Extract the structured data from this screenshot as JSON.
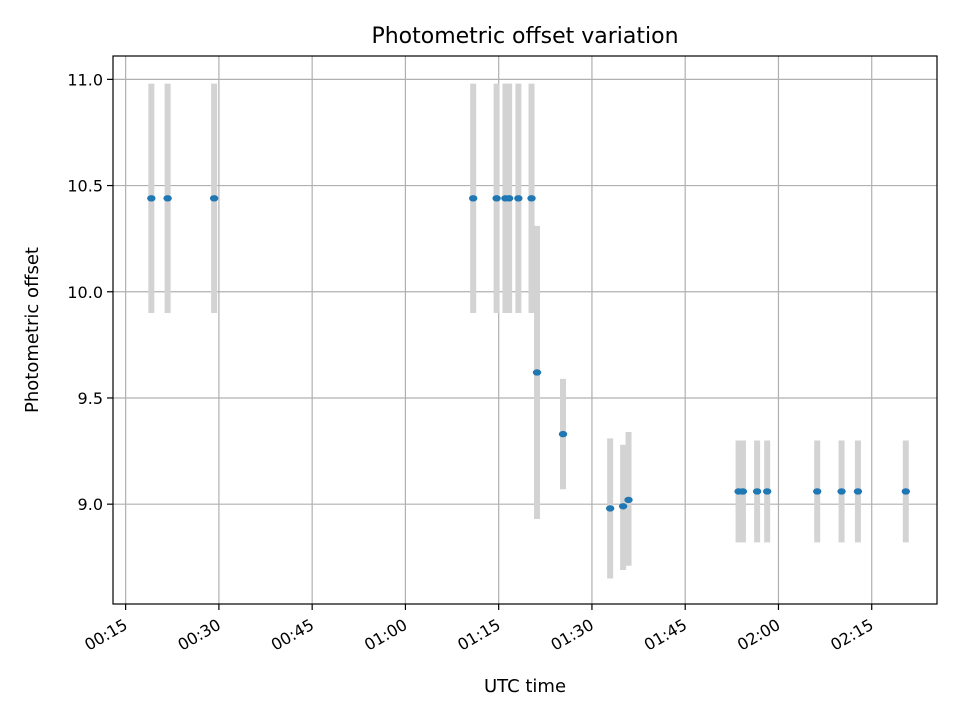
{
  "chart_data": {
    "type": "scatter",
    "title": "Photometric offset variation",
    "xlabel": "UTC time",
    "ylabel": "Photometric offset",
    "x_ticks": [
      "00:15",
      "00:30",
      "00:45",
      "01:00",
      "01:15",
      "01:30",
      "01:45",
      "02:00",
      "02:15"
    ],
    "y_ticks": [
      "9.0",
      "9.5",
      "10.0",
      "10.5",
      "11.0"
    ],
    "xlim": [
      "00:12:58",
      "02:25:30"
    ],
    "ylim": [
      8.53,
      11.11
    ],
    "grid": true,
    "point_color": "#1f77b4",
    "errorbar_color": "#d3d3d3",
    "points": [
      {
        "x": "00:19:08",
        "y": 10.44,
        "ylow": 9.9,
        "yhigh": 10.98
      },
      {
        "x": "00:21:45",
        "y": 10.44,
        "ylow": 9.9,
        "yhigh": 10.98
      },
      {
        "x": "00:29:14",
        "y": 10.44,
        "ylow": 9.9,
        "yhigh": 10.98
      },
      {
        "x": "01:10:54",
        "y": 10.44,
        "ylow": 9.9,
        "yhigh": 10.98
      },
      {
        "x": "01:14:40",
        "y": 10.44,
        "ylow": 9.9,
        "yhigh": 10.98
      },
      {
        "x": "01:16:05",
        "y": 10.44,
        "ylow": 9.9,
        "yhigh": 10.98
      },
      {
        "x": "01:16:41",
        "y": 10.44,
        "ylow": 9.9,
        "yhigh": 10.98
      },
      {
        "x": "01:18:10",
        "y": 10.44,
        "ylow": 9.9,
        "yhigh": 10.98
      },
      {
        "x": "01:20:17",
        "y": 10.44,
        "ylow": 9.9,
        "yhigh": 10.98
      },
      {
        "x": "01:21:10",
        "y": 9.62,
        "ylow": 8.93,
        "yhigh": 10.31
      },
      {
        "x": "01:25:21",
        "y": 9.33,
        "ylow": 9.07,
        "yhigh": 9.59
      },
      {
        "x": "01:32:56",
        "y": 8.98,
        "ylow": 8.65,
        "yhigh": 9.31
      },
      {
        "x": "01:35:01",
        "y": 8.99,
        "ylow": 8.69,
        "yhigh": 9.28
      },
      {
        "x": "01:35:53",
        "y": 9.02,
        "ylow": 8.71,
        "yhigh": 9.34
      },
      {
        "x": "01:53:35",
        "y": 9.06,
        "ylow": 8.82,
        "yhigh": 9.3
      },
      {
        "x": "01:54:17",
        "y": 9.06,
        "ylow": 8.82,
        "yhigh": 9.3
      },
      {
        "x": "01:56:34",
        "y": 9.06,
        "ylow": 8.82,
        "yhigh": 9.3
      },
      {
        "x": "01:58:11",
        "y": 9.06,
        "ylow": 8.82,
        "yhigh": 9.3
      },
      {
        "x": "02:06:14",
        "y": 9.06,
        "ylow": 8.82,
        "yhigh": 9.3
      },
      {
        "x": "02:10:09",
        "y": 9.06,
        "ylow": 8.82,
        "yhigh": 9.3
      },
      {
        "x": "02:12:47",
        "y": 9.06,
        "ylow": 8.82,
        "yhigh": 9.3
      },
      {
        "x": "02:20:29",
        "y": 9.06,
        "ylow": 8.82,
        "yhigh": 9.3
      }
    ]
  }
}
